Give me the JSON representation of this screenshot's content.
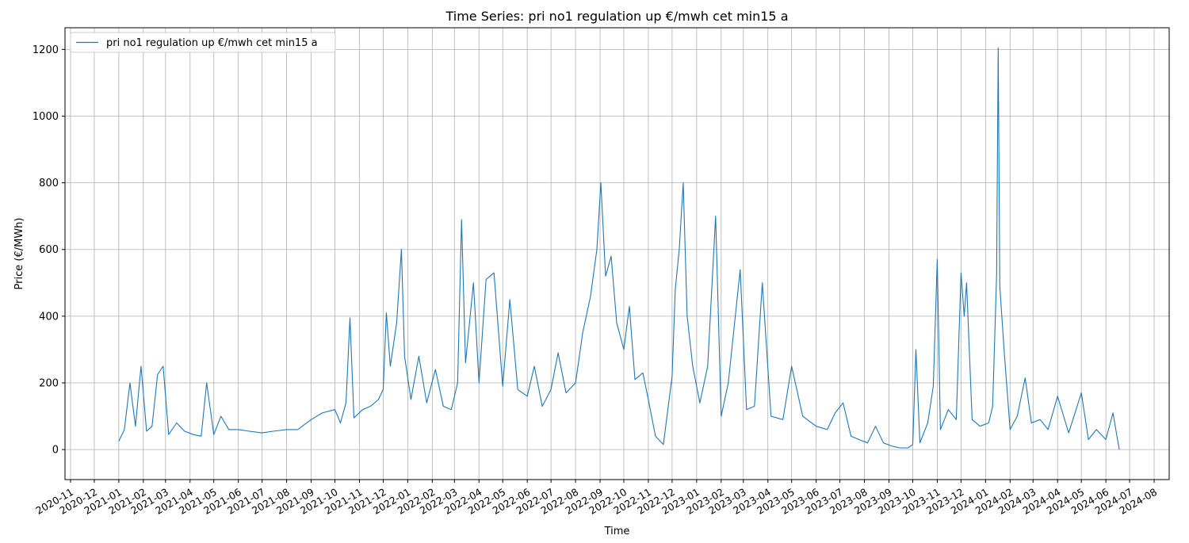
{
  "chart_data": {
    "type": "line",
    "title": "Time Series: pri no1 regulation up €/mwh cet min15 a",
    "xlabel": "Time",
    "ylabel": "Price (€/MWh)",
    "xlim": [
      "2020-10-25",
      "2024-08-20"
    ],
    "ylim": [
      -90,
      1265
    ],
    "grid": true,
    "legend": {
      "position": "upper-left"
    },
    "x_ticks": [
      "2020-11",
      "2020-12",
      "2021-01",
      "2021-02",
      "2021-03",
      "2021-04",
      "2021-05",
      "2021-06",
      "2021-07",
      "2021-08",
      "2021-09",
      "2021-10",
      "2021-11",
      "2021-12",
      "2022-01",
      "2022-02",
      "2022-03",
      "2022-04",
      "2022-05",
      "2022-06",
      "2022-07",
      "2022-08",
      "2022-09",
      "2022-10",
      "2022-11",
      "2022-12",
      "2023-01",
      "2023-02",
      "2023-03",
      "2023-04",
      "2023-05",
      "2023-06",
      "2023-07",
      "2023-08",
      "2023-09",
      "2023-10",
      "2023-11",
      "2023-12",
      "2024-01",
      "2024-02",
      "2024-03",
      "2024-04",
      "2024-05",
      "2024-06",
      "2024-07",
      "2024-08"
    ],
    "y_ticks": [
      0,
      200,
      400,
      600,
      800,
      1000,
      1200
    ],
    "series": [
      {
        "name": "pri no1 regulation up €/mwh cet min15 a",
        "color": "#1f77b4",
        "points": [
          [
            "2021-01-01",
            25
          ],
          [
            "2021-01-08",
            60
          ],
          [
            "2021-01-15",
            200
          ],
          [
            "2021-01-22",
            70
          ],
          [
            "2021-01-29",
            250
          ],
          [
            "2021-02-05",
            55
          ],
          [
            "2021-02-12",
            70
          ],
          [
            "2021-02-19",
            225
          ],
          [
            "2021-02-26",
            250
          ],
          [
            "2021-03-05",
            45
          ],
          [
            "2021-03-15",
            80
          ],
          [
            "2021-03-25",
            55
          ],
          [
            "2021-04-05",
            45
          ],
          [
            "2021-04-15",
            40
          ],
          [
            "2021-04-22",
            200
          ],
          [
            "2021-05-01",
            45
          ],
          [
            "2021-05-10",
            100
          ],
          [
            "2021-05-20",
            60
          ],
          [
            "2021-06-01",
            60
          ],
          [
            "2021-06-15",
            55
          ],
          [
            "2021-07-01",
            50
          ],
          [
            "2021-07-15",
            55
          ],
          [
            "2021-08-01",
            60
          ],
          [
            "2021-08-15",
            60
          ],
          [
            "2021-09-01",
            90
          ],
          [
            "2021-09-15",
            110
          ],
          [
            "2021-10-01",
            120
          ],
          [
            "2021-10-08",
            80
          ],
          [
            "2021-10-15",
            140
          ],
          [
            "2021-10-20",
            395
          ],
          [
            "2021-10-25",
            95
          ],
          [
            "2021-11-05",
            120
          ],
          [
            "2021-11-15",
            130
          ],
          [
            "2021-11-25",
            150
          ],
          [
            "2021-12-01",
            180
          ],
          [
            "2021-12-05",
            410
          ],
          [
            "2021-12-10",
            250
          ],
          [
            "2021-12-18",
            380
          ],
          [
            "2021-12-24",
            600
          ],
          [
            "2021-12-28",
            280
          ],
          [
            "2022-01-05",
            150
          ],
          [
            "2022-01-15",
            280
          ],
          [
            "2022-01-25",
            140
          ],
          [
            "2022-02-05",
            240
          ],
          [
            "2022-02-15",
            130
          ],
          [
            "2022-02-25",
            120
          ],
          [
            "2022-03-05",
            200
          ],
          [
            "2022-03-10",
            690
          ],
          [
            "2022-03-15",
            260
          ],
          [
            "2022-03-25",
            500
          ],
          [
            "2022-04-01",
            200
          ],
          [
            "2022-04-10",
            510
          ],
          [
            "2022-04-20",
            530
          ],
          [
            "2022-05-01",
            190
          ],
          [
            "2022-05-10",
            450
          ],
          [
            "2022-05-20",
            180
          ],
          [
            "2022-06-01",
            160
          ],
          [
            "2022-06-10",
            250
          ],
          [
            "2022-06-20",
            130
          ],
          [
            "2022-07-01",
            180
          ],
          [
            "2022-07-10",
            290
          ],
          [
            "2022-07-20",
            170
          ],
          [
            "2022-08-01",
            200
          ],
          [
            "2022-08-10",
            350
          ],
          [
            "2022-08-20",
            460
          ],
          [
            "2022-08-28",
            600
          ],
          [
            "2022-09-02",
            800
          ],
          [
            "2022-09-08",
            520
          ],
          [
            "2022-09-15",
            580
          ],
          [
            "2022-09-22",
            380
          ],
          [
            "2022-10-01",
            300
          ],
          [
            "2022-10-08",
            430
          ],
          [
            "2022-10-15",
            210
          ],
          [
            "2022-10-25",
            230
          ],
          [
            "2022-11-01",
            150
          ],
          [
            "2022-11-10",
            40
          ],
          [
            "2022-11-20",
            15
          ],
          [
            "2022-12-01",
            220
          ],
          [
            "2022-12-05",
            480
          ],
          [
            "2022-12-10",
            600
          ],
          [
            "2022-12-15",
            800
          ],
          [
            "2022-12-20",
            400
          ],
          [
            "2022-12-27",
            250
          ],
          [
            "2023-01-05",
            140
          ],
          [
            "2023-01-15",
            250
          ],
          [
            "2023-01-25",
            700
          ],
          [
            "2023-02-01",
            100
          ],
          [
            "2023-02-10",
            200
          ],
          [
            "2023-02-25",
            540
          ],
          [
            "2023-03-05",
            120
          ],
          [
            "2023-03-15",
            130
          ],
          [
            "2023-03-25",
            500
          ],
          [
            "2023-04-05",
            100
          ],
          [
            "2023-04-20",
            90
          ],
          [
            "2023-05-01",
            250
          ],
          [
            "2023-05-15",
            100
          ],
          [
            "2023-06-01",
            70
          ],
          [
            "2023-06-15",
            60
          ],
          [
            "2023-06-25",
            110
          ],
          [
            "2023-07-05",
            140
          ],
          [
            "2023-07-15",
            40
          ],
          [
            "2023-07-25",
            30
          ],
          [
            "2023-08-05",
            20
          ],
          [
            "2023-08-15",
            70
          ],
          [
            "2023-08-25",
            20
          ],
          [
            "2023-09-05",
            10
          ],
          [
            "2023-09-15",
            5
          ],
          [
            "2023-09-25",
            5
          ],
          [
            "2023-10-01",
            15
          ],
          [
            "2023-10-05",
            300
          ],
          [
            "2023-10-10",
            20
          ],
          [
            "2023-10-20",
            80
          ],
          [
            "2023-10-27",
            190
          ],
          [
            "2023-11-01",
            570
          ],
          [
            "2023-11-05",
            60
          ],
          [
            "2023-11-15",
            120
          ],
          [
            "2023-11-25",
            90
          ],
          [
            "2023-12-01",
            530
          ],
          [
            "2023-12-05",
            400
          ],
          [
            "2023-12-08",
            500
          ],
          [
            "2023-12-15",
            90
          ],
          [
            "2023-12-25",
            70
          ],
          [
            "2024-01-05",
            80
          ],
          [
            "2024-01-10",
            130
          ],
          [
            "2024-01-15",
            525
          ],
          [
            "2024-01-17",
            1205
          ],
          [
            "2024-01-19",
            490
          ],
          [
            "2024-01-25",
            280
          ],
          [
            "2024-02-01",
            60
          ],
          [
            "2024-02-10",
            100
          ],
          [
            "2024-02-20",
            215
          ],
          [
            "2024-02-28",
            80
          ],
          [
            "2024-03-10",
            90
          ],
          [
            "2024-03-20",
            60
          ],
          [
            "2024-04-01",
            160
          ],
          [
            "2024-04-15",
            50
          ],
          [
            "2024-05-01",
            170
          ],
          [
            "2024-05-10",
            30
          ],
          [
            "2024-05-20",
            60
          ],
          [
            "2024-06-01",
            30
          ],
          [
            "2024-06-10",
            110
          ],
          [
            "2024-06-15",
            40
          ],
          [
            "2024-06-18",
            0
          ]
        ]
      }
    ]
  }
}
